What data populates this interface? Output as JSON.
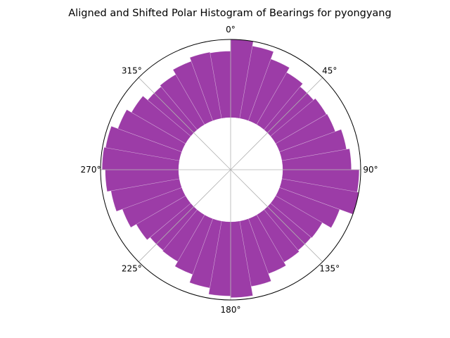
{
  "chart_data": {
    "type": "polar_histogram",
    "title": "Aligned and Shifted Polar Histogram of Bearings for pyongyang",
    "theta_zero": "N",
    "theta_direction": "clockwise",
    "angle_ticks": [
      "0°",
      "45°",
      "90°",
      "135°",
      "180°",
      "225°",
      "270°",
      "315°"
    ],
    "angle_tick_values": [
      0,
      45,
      90,
      135,
      180,
      225,
      270,
      315
    ],
    "grid": true,
    "bin_width_deg": 10,
    "bar_color": "#8b1a98",
    "bar_opacity": 0.85,
    "inner_hole_fraction": 0.4,
    "bins": [
      {
        "center": 5,
        "value": 1.0
      },
      {
        "center": 15,
        "value": 0.94
      },
      {
        "center": 25,
        "value": 0.84
      },
      {
        "center": 35,
        "value": 0.77
      },
      {
        "center": 45,
        "value": 0.72
      },
      {
        "center": 55,
        "value": 0.75
      },
      {
        "center": 65,
        "value": 0.76
      },
      {
        "center": 75,
        "value": 0.84
      },
      {
        "center": 85,
        "value": 0.88
      },
      {
        "center": 95,
        "value": 0.98
      },
      {
        "center": 105,
        "value": 1.0
      },
      {
        "center": 115,
        "value": 0.82
      },
      {
        "center": 125,
        "value": 0.69
      },
      {
        "center": 135,
        "value": 0.68
      },
      {
        "center": 145,
        "value": 0.7
      },
      {
        "center": 155,
        "value": 0.75
      },
      {
        "center": 165,
        "value": 0.85
      },
      {
        "center": 175,
        "value": 0.97
      },
      {
        "center": 185,
        "value": 0.95
      },
      {
        "center": 195,
        "value": 0.87
      },
      {
        "center": 205,
        "value": 0.76
      },
      {
        "center": 215,
        "value": 0.69
      },
      {
        "center": 225,
        "value": 0.68
      },
      {
        "center": 235,
        "value": 0.73
      },
      {
        "center": 245,
        "value": 0.81
      },
      {
        "center": 255,
        "value": 0.89
      },
      {
        "center": 265,
        "value": 0.94
      },
      {
        "center": 275,
        "value": 0.98
      },
      {
        "center": 285,
        "value": 0.96
      },
      {
        "center": 295,
        "value": 0.87
      },
      {
        "center": 305,
        "value": 0.8
      },
      {
        "center": 315,
        "value": 0.72
      },
      {
        "center": 325,
        "value": 0.74
      },
      {
        "center": 335,
        "value": 0.81
      },
      {
        "center": 345,
        "value": 0.86
      },
      {
        "center": 355,
        "value": 0.85
      }
    ]
  }
}
